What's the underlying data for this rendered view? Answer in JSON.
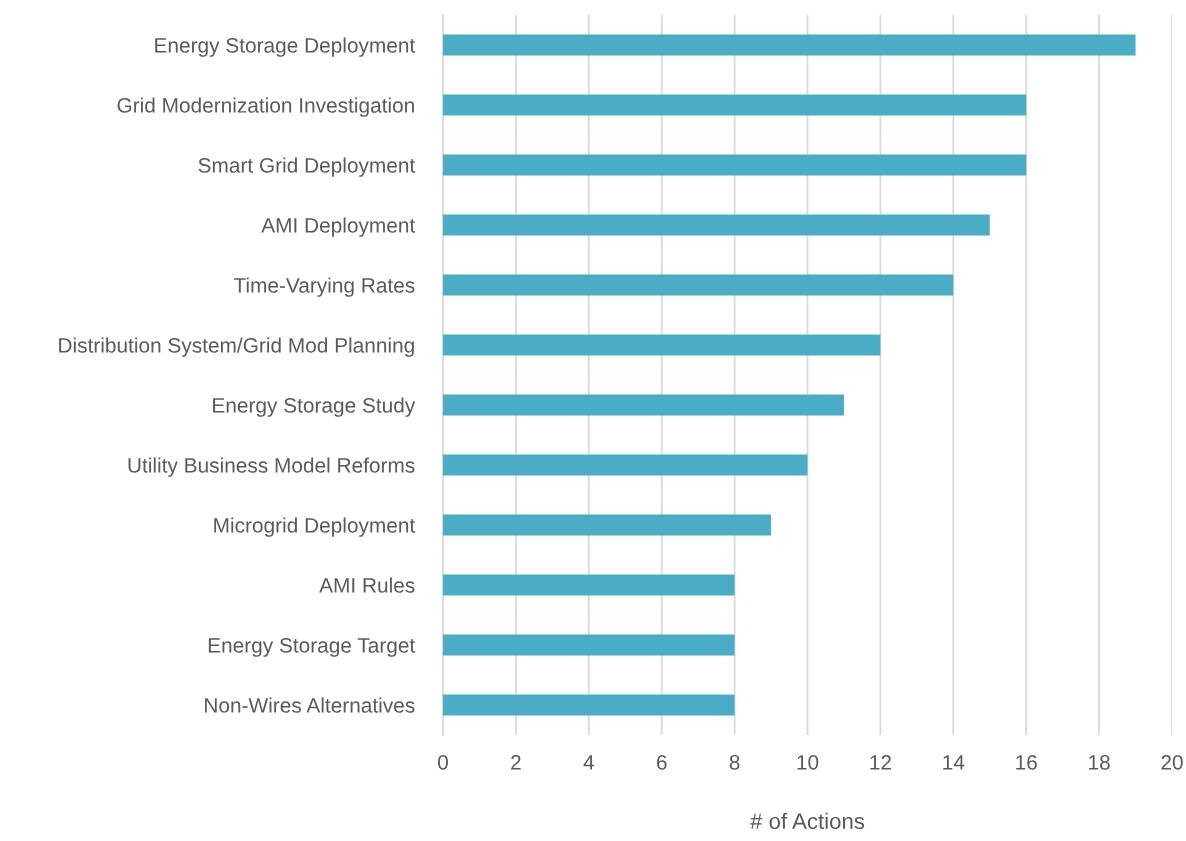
{
  "chart_data": {
    "type": "bar",
    "orientation": "horizontal",
    "xlabel": "# of Actions",
    "categories": [
      "Energy Storage Deployment",
      "Grid Modernization Investigation",
      "Smart Grid Deployment",
      "AMI Deployment",
      "Time-Varying Rates",
      "Distribution System/Grid Mod Planning",
      "Energy Storage Study",
      "Utility Business Model Reforms",
      "Microgrid Deployment",
      "AMI Rules",
      "Energy Storage Target",
      "Non-Wires Alternatives"
    ],
    "values": [
      19,
      16,
      16,
      15,
      14,
      12,
      11,
      10,
      9,
      8,
      8,
      8
    ],
    "color": "#4bacc6",
    "xlim": [
      0,
      20
    ],
    "xticks": [
      0,
      2,
      4,
      6,
      8,
      10,
      12,
      14,
      16,
      18,
      20
    ],
    "grid": "x"
  }
}
